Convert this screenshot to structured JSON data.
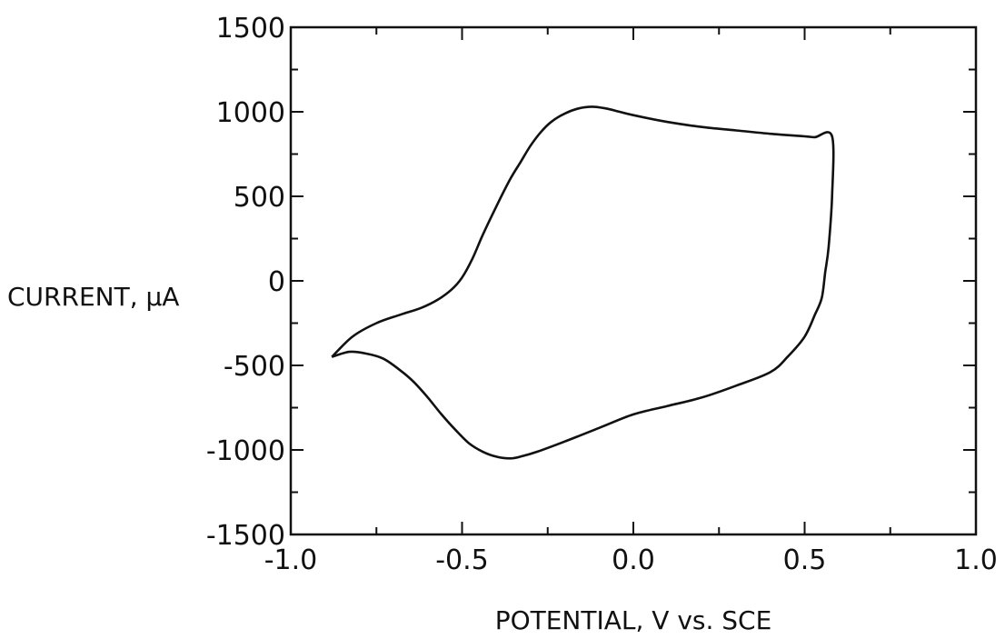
{
  "chart_data": {
    "type": "line",
    "title": "",
    "xlabel": "POTENTIAL, V vs. SCE",
    "ylabel": "CURRENT, µA",
    "xlim": [
      -1.0,
      1.0
    ],
    "ylim": [
      -1500,
      1500
    ],
    "x_ticks": [
      -1.0,
      -0.5,
      0.0,
      0.5,
      1.0
    ],
    "x_tick_labels": [
      "-1.0",
      "-0.5",
      "0.0",
      "0.5",
      "1.0"
    ],
    "x_minor_step": 0.25,
    "y_ticks": [
      -1500,
      -1000,
      -500,
      0,
      500,
      1000,
      1500
    ],
    "y_tick_labels": [
      "-1500",
      "-1000",
      "-500",
      "0",
      "500",
      "1000",
      "1500"
    ],
    "y_minor_step": 250,
    "grid": false,
    "legend": "none",
    "line_color": "#111111",
    "series": [
      {
        "x": [
          -0.88,
          -0.82,
          -0.75,
          -0.68,
          -0.62,
          -0.57,
          -0.53,
          -0.5,
          -0.47,
          -0.44,
          -0.4,
          -0.36,
          -0.33,
          -0.3,
          -0.27,
          -0.24,
          -0.2,
          -0.16,
          -0.12,
          -0.08,
          -0.04,
          0.0,
          0.1,
          0.2,
          0.3,
          0.4,
          0.5,
          0.53,
          0.58,
          0.58,
          0.57,
          0.56,
          0.55,
          0.53,
          0.5,
          0.45,
          0.4,
          0.3,
          0.2,
          0.1,
          0.0,
          -0.1,
          -0.2,
          -0.28,
          -0.33,
          -0.36,
          -0.4,
          -0.44,
          -0.48,
          -0.52,
          -0.56,
          -0.6,
          -0.64,
          -0.68,
          -0.73,
          -0.78,
          -0.83,
          -0.88
        ],
        "y": [
          -450,
          -330,
          -250,
          -200,
          -160,
          -110,
          -50,
          20,
          130,
          270,
          440,
          600,
          700,
          800,
          880,
          940,
          990,
          1020,
          1030,
          1020,
          1000,
          980,
          940,
          910,
          890,
          870,
          855,
          850,
          855,
          500,
          200,
          50,
          -100,
          -200,
          -330,
          -450,
          -540,
          -620,
          -690,
          -740,
          -790,
          -870,
          -950,
          -1010,
          -1040,
          -1050,
          -1040,
          -1010,
          -960,
          -880,
          -790,
          -690,
          -600,
          -530,
          -460,
          -430,
          -420,
          -450
        ]
      }
    ]
  }
}
